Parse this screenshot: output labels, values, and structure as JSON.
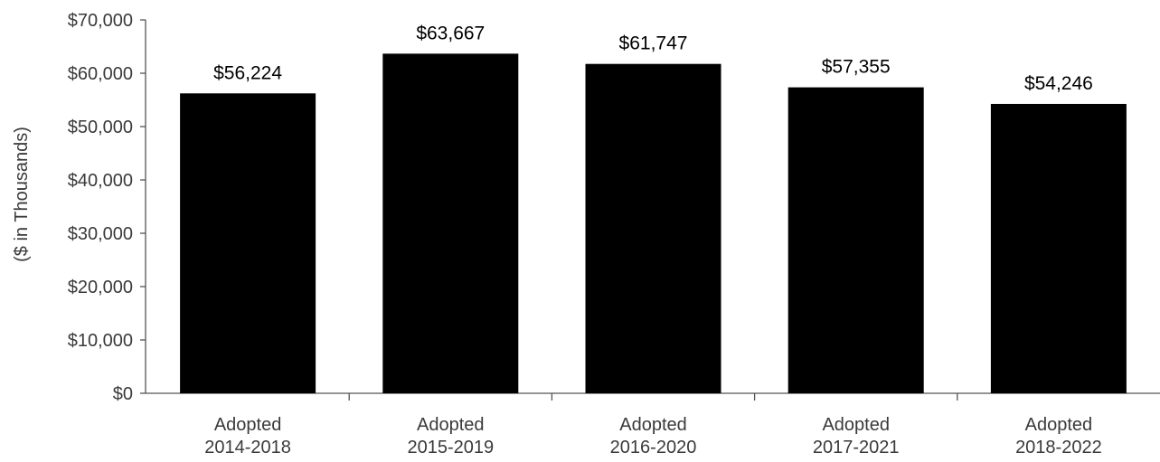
{
  "chart_data": {
    "type": "bar",
    "categories": [
      [
        "Adopted",
        "2014-2018"
      ],
      [
        "Adopted",
        "2015-2019"
      ],
      [
        "Adopted",
        "2016-2020"
      ],
      [
        "Adopted",
        "2017-2021"
      ],
      [
        "Adopted",
        "2018-2022"
      ]
    ],
    "values": [
      56224,
      63667,
      61747,
      57355,
      54246
    ],
    "data_labels": [
      "$56,224",
      "$63,667",
      "$61,747",
      "$57,355",
      "$54,246"
    ],
    "ylabel": "($ in Thousands)",
    "ylim": [
      0,
      70000
    ],
    "yticks": [
      0,
      10000,
      20000,
      30000,
      40000,
      50000,
      60000,
      70000
    ],
    "ytick_labels": [
      "$0",
      "$10,000",
      "$20,000",
      "$30,000",
      "$40,000",
      "$50,000",
      "$60,000",
      "$70,000"
    ],
    "grid": false,
    "legend": "none",
    "bar_color": "#000000"
  }
}
